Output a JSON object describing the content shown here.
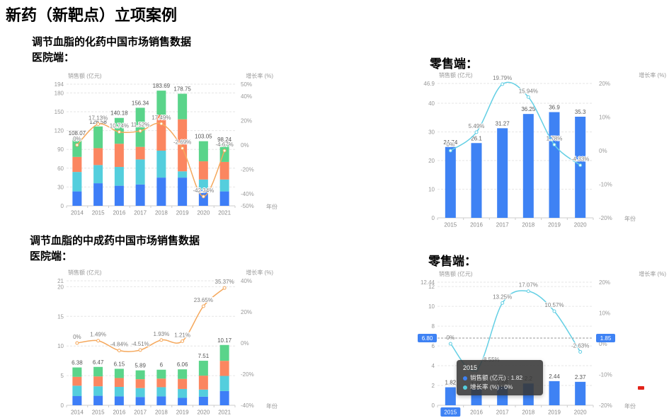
{
  "page": {
    "title": "新药（新靶点）立项案例"
  },
  "sections": {
    "hospital_chem": {
      "heading": "调节血脂的化药中国市场销售数据",
      "sub": "医院端："
    },
    "retail_chem": {
      "heading": "零售端："
    },
    "hospital_tcm": {
      "heading": "调节血脂的中成药中国市场销售数据",
      "sub": "医院端："
    },
    "retail_tcm": {
      "heading": "零售端："
    }
  },
  "colors": {
    "accent_blue": "#3E82F4",
    "stack_blue": "#3E7EF7",
    "stack_cyan": "#54CEDD",
    "stack_orange": "#FB8660",
    "stack_green": "#5AD48A",
    "line_orange": "#F5A85C",
    "line_cyan": "#63CFE4",
    "red_mark": "#E2231A"
  },
  "chart_data": [
    {
      "id": "c1",
      "type": "bar",
      "stacked": true,
      "title_left_axis": "销售额 (亿元)",
      "title_right_axis": "增长率 (%)",
      "xlabel": "年份",
      "categories": [
        "2014",
        "2015",
        "2016",
        "2017",
        "2018",
        "2019",
        "2020",
        "2021"
      ],
      "series": [
        {
          "color": "#3E7EF7",
          "values": [
            23,
            36,
            32,
            34,
            45,
            45,
            25,
            23
          ]
        },
        {
          "color": "#54CEDD",
          "values": [
            31,
            29,
            30,
            40,
            43,
            10,
            17,
            19
          ]
        },
        {
          "color": "#FB8660",
          "values": [
            24,
            27,
            37,
            20,
            57,
            83,
            29,
            28
          ]
        },
        {
          "color": "#5AD48A",
          "values": [
            30.07,
            34.58,
            41.18,
            62.34,
            38.69,
            40.75,
            32.05,
            28.24
          ]
        }
      ],
      "totals": [
        "108.07",
        "126.58",
        "140.18",
        "156.34",
        "183.69",
        "178.75",
        "103.05",
        "98.24"
      ],
      "left_max": 194,
      "left_ticks": [
        194,
        180,
        150,
        120,
        90,
        60,
        30,
        0
      ],
      "right_range": [
        -50,
        50
      ],
      "right_ticks": [
        50,
        40,
        20,
        0,
        -20,
        -40,
        -50
      ],
      "growth": {
        "color": "#F5A85C",
        "values": [
          0,
          17.13,
          10.74,
          11.52,
          17.49,
          -2.69,
          -42.34,
          -4.67
        ],
        "labels": [
          "0%",
          "17.13%",
          "10.74%",
          "11.52%",
          "17.49%",
          "-2.69%",
          "-42.34%",
          "-4.67%"
        ]
      }
    },
    {
      "id": "c2",
      "type": "bar",
      "stacked": false,
      "title_left_axis": "销售额 (亿元)",
      "title_right_axis": "增长率 (%)",
      "xlabel": "年份",
      "categories": [
        "2015",
        "2016",
        "2017",
        "2018",
        "2019",
        "2020"
      ],
      "bar_color": "#3E82F4",
      "values": [
        24.74,
        26.1,
        31.27,
        36.25,
        36.9,
        35.3
      ],
      "totals": [
        "24.74",
        "26.1",
        "31.27",
        "36.25",
        "36.9",
        "35.3"
      ],
      "left_max": 46.9,
      "left_ticks": [
        46.9,
        40,
        30,
        20,
        10,
        0
      ],
      "right_range": [
        -20,
        20
      ],
      "right_ticks": [
        20,
        10,
        0,
        -10,
        -20
      ],
      "growth": {
        "color": "#63CFE4",
        "values": [
          0,
          5.49,
          19.79,
          15.94,
          1.78,
          -4.33
        ],
        "labels": [
          "0%",
          "5.49%",
          "19.79%",
          "15.94%",
          "1.78%",
          "-4.33%"
        ]
      }
    },
    {
      "id": "c3",
      "type": "bar",
      "stacked": true,
      "title_left_axis": "销售额 (亿元)",
      "title_right_axis": "增长率 (%)",
      "xlabel": "年份",
      "categories": [
        "2014",
        "2015",
        "2016",
        "2017",
        "2018",
        "2019",
        "2020",
        "2021"
      ],
      "series": [
        {
          "color": "#3E7EF7",
          "values": [
            1.55,
            1.6,
            1.5,
            1.4,
            1.5,
            1.25,
            1.45,
            2.4
          ]
        },
        {
          "color": "#54CEDD",
          "values": [
            1.75,
            1.6,
            1.6,
            1.5,
            1.55,
            1.5,
            1.2,
            2.55
          ]
        },
        {
          "color": "#FB8660",
          "values": [
            1.5,
            1.67,
            1.5,
            1.5,
            1.45,
            1.7,
            2.35,
            2.55
          ]
        },
        {
          "color": "#5AD48A",
          "values": [
            1.58,
            1.6,
            1.55,
            1.49,
            1.5,
            1.61,
            2.51,
            2.67
          ]
        }
      ],
      "totals": [
        "6.38",
        "6.47",
        "6.15",
        "5.89",
        "6",
        "6.06",
        "7.51",
        "10.17"
      ],
      "left_max": 21,
      "left_ticks": [
        21,
        20,
        15,
        10,
        5,
        0
      ],
      "right_range": [
        -40,
        40
      ],
      "right_ticks": [
        40,
        20,
        0,
        -20,
        -40
      ],
      "growth": {
        "color": "#F5A85C",
        "values": [
          0,
          1.49,
          -4.84,
          -4.51,
          1.93,
          1.21,
          23.65,
          35.37
        ],
        "labels": [
          "0%",
          "1.49%",
          "-4.84%",
          "-4.51%",
          "1.93%",
          "1.21%",
          "23.65%",
          "35.37%"
        ]
      }
    },
    {
      "id": "c4",
      "type": "bar",
      "stacked": false,
      "title_left_axis": "销售额 (亿元)",
      "title_right_axis": "增长率 (%)",
      "xlabel": "年份",
      "categories": [
        "2015",
        "2016",
        "2017",
        "2018",
        "2019",
        "2020"
      ],
      "bar_color": "#3E82F4",
      "values": [
        1.82,
        1.66,
        1.88,
        2.2,
        2.44,
        2.37
      ],
      "totals": [
        "1.82",
        "1.66",
        "1.88",
        "2.2",
        "2.44",
        "2.37"
      ],
      "left_max": 12.44,
      "left_ticks": [
        12.44,
        12,
        10,
        8,
        6,
        4,
        2,
        0
      ],
      "right_range": [
        -20,
        20
      ],
      "right_ticks": [
        20,
        10,
        0,
        -10,
        -20
      ],
      "growth": {
        "color": "#63CFE4",
        "values": [
          0,
          -8.55,
          13.25,
          17.07,
          10.57,
          -2.63
        ],
        "labels": [
          "0%",
          "-8.55%",
          "13.25%",
          "17.07%",
          "10.57%",
          "-2.63%"
        ]
      },
      "highlight_x": "2015",
      "pointer": {
        "pct": 1.85,
        "left_label": "6.80",
        "right_label": "1.85"
      },
      "tooltip": {
        "title": "2015",
        "rows": [
          {
            "dot_color": "#3E82F4",
            "label": "销售额 (亿元)",
            "value": "1.82"
          },
          {
            "dot_color": "#54CEDD",
            "label": "增长率 (%)",
            "value": "0%"
          }
        ]
      }
    }
  ]
}
